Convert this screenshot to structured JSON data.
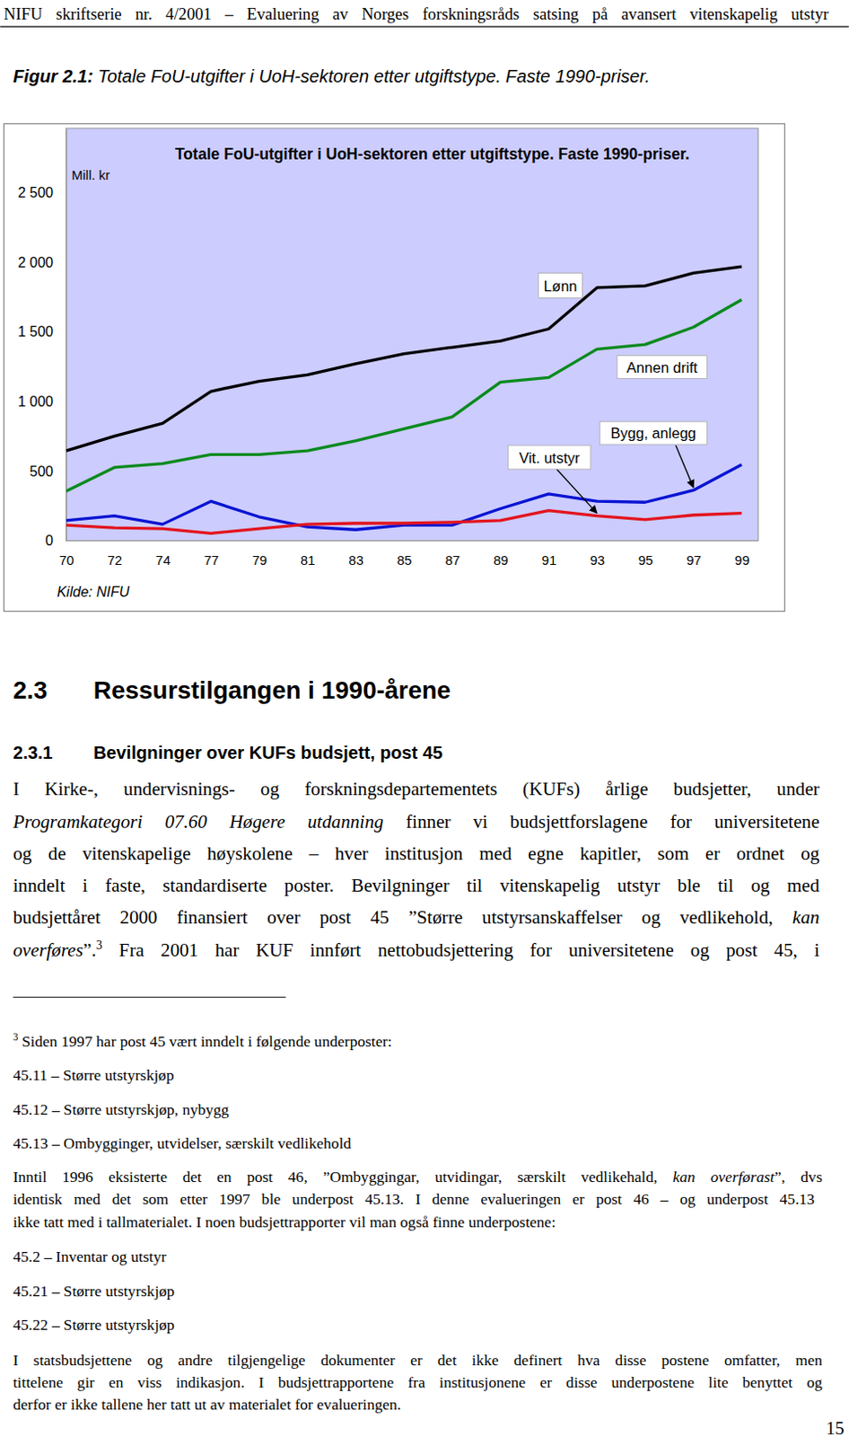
{
  "document": {
    "header": "NIFU skriftserie nr. 4/2001 – Evaluering av Norges forskningsråds satsing på avansert vitenskapelig utstyr",
    "caption": {
      "label": "Figur 2.1:",
      "text": "Totale FoU-utgifter i UoH-sektoren etter utgiftstype. Faste 1990-priser."
    },
    "section": {
      "number": "2.3",
      "title": "Ressurstilgangen i 1990-årene"
    },
    "subsection": {
      "number": "2.3.1",
      "title": "Bevilgninger over KUFs budsjett, post 45"
    },
    "paragraph": [
      [
        {
          "text": "I Kirke-, undervisnings- og forskningsdepartementets (KUFs) årlige budsjetter, under"
        }
      ],
      [
        {
          "text": "Programkategori 07.60 Høgere utdanning",
          "style": "italic"
        },
        {
          "text": " finner vi budsjettforslagene for universitetene"
        }
      ],
      [
        {
          "text": "og de vitenskapelige høyskolene – hver institusjon med egne kapitler, som er ordnet og"
        }
      ],
      [
        {
          "text": "inndelt i faste, standardiserte poster. Bevilgninger til vitenskapelig utstyr ble til og med"
        }
      ],
      [
        {
          "text": "budsjettåret 2000 finansiert over post 45 ”Større utstyrsanskaffelser og vedlikehold, "
        },
        {
          "text": "kan",
          "style": "italic"
        }
      ],
      [
        {
          "text": "overføres",
          "style": "italic"
        },
        {
          "text": "”."
        },
        {
          "text": "3",
          "style": "sup"
        },
        {
          "text": " Fra 2001 har KUF innført nettobudsjettering for universitetene og post 45, i"
        }
      ]
    ],
    "footnote": [
      [
        {
          "text": "3",
          "style": "sup"
        },
        {
          "text": " Siden 1997 har post 45 vært inndelt i følgende underposter:"
        }
      ],
      [
        {
          "text": "45.11 – Større utstyrskjøp"
        }
      ],
      [
        {
          "text": "45.12 – Større utstyrskjøp, nybygg"
        }
      ],
      [
        {
          "text": "45.13 – Ombygginger, utvidelser, særskilt vedlikehold"
        }
      ],
      [
        {
          "text": "Inntil 1996 eksisterte det en post 46, ”Ombyggingar, utvidingar, særskilt vedlikehald, "
        },
        {
          "text": "kan overførast",
          "style": "italic"
        },
        {
          "text": "”, dvs"
        }
      ],
      [
        {
          "text": "identisk med det som etter 1997 ble underpost 45.13.  I denne evalueringen er post 46 – og underpost 45.13"
        }
      ],
      [
        {
          "text": "ikke tatt med i tallmaterialet.  I noen budsjettrapporter vil man også finne underpostene:"
        }
      ],
      [
        {
          "text": "45.2 – Inventar og utstyr"
        }
      ],
      [
        {
          "text": "45.21 – Større utstyrskjøp"
        }
      ],
      [
        {
          "text": "45.22 – Større utstyrskjøp"
        }
      ],
      [
        {
          "text": "I statsbudsjettene og andre tilgjengelige dokumenter er det ikke definert hva disse postene omfatter, men"
        }
      ],
      [
        {
          "text": "tittelene gir en viss indikasjon. I budsjettrapportene fra institusjonene er disse underpostene lite benyttet og"
        }
      ],
      [
        {
          "text": "derfor er ikke tallene her tatt ut av materialet for evalueringen."
        }
      ]
    ],
    "page_number": "15"
  },
  "chart_data": {
    "type": "line",
    "title": "Totale FoU-utgifter i UoH-sektoren etter utgiftstype. Faste 1990-priser.",
    "ylabel": "Mill. kr",
    "note": "Kilde: NIFU",
    "categories": [
      "70",
      "72",
      "74",
      "77",
      "79",
      "81",
      "83",
      "85",
      "87",
      "89",
      "91",
      "93",
      "95",
      "97",
      "99"
    ],
    "series": [
      {
        "name": "Lønn",
        "color": "#000000",
        "values": [
          645,
          750,
          842,
          1072,
          1145,
          1191,
          1270,
          1342,
          1388,
          1434,
          1520,
          1816,
          1829,
          1921,
          1967
        ]
      },
      {
        "name": "Annen drift",
        "color": "#0a8a1e",
        "values": [
          355,
          526,
          553,
          618,
          618,
          645,
          717,
          803,
          888,
          1138,
          1171,
          1375,
          1408,
          1533,
          1730
        ]
      },
      {
        "name": "Bygg, anlegg",
        "color": "#0a14d2",
        "values": [
          145,
          178,
          118,
          283,
          171,
          99,
          79,
          112,
          112,
          230,
          336,
          283,
          276,
          362,
          546
        ]
      },
      {
        "name": "Vit. utstyr",
        "color": "#e3141e",
        "values": [
          112,
          92,
          86,
          53,
          86,
          118,
          125,
          125,
          132,
          145,
          217,
          178,
          151,
          184,
          197
        ]
      }
    ],
    "ylim": [
      0,
      2960
    ],
    "yticks": [
      0,
      {
        "value": 500,
        "label": "500"
      },
      {
        "value": 1000,
        "label": "1 000"
      },
      {
        "value": 1500,
        "label": "1 500"
      },
      {
        "value": 2000,
        "label": "2 000"
      },
      {
        "value": 2500,
        "label": "2 500"
      }
    ],
    "grid": false
  }
}
